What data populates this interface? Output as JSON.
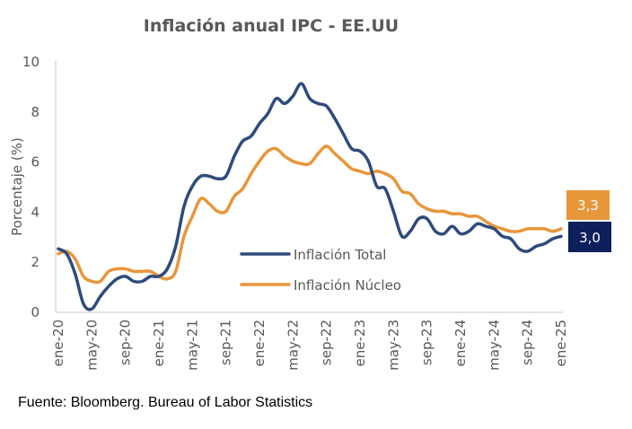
{
  "chart_data": {
    "type": "line",
    "title": "Inflación anual IPC - EE.UU",
    "xlabel": "",
    "ylabel": "Porcentaje (%)",
    "ylim": [
      0,
      10
    ],
    "yticks": [
      "0",
      "2",
      "4",
      "6",
      "8",
      "10"
    ],
    "grid": false,
    "legend_position": "center",
    "xtick_labels": [
      "ene-20",
      "may-20",
      "sep-20",
      "ene-21",
      "may-21",
      "sep-21",
      "ene-22",
      "may-22",
      "sep-22",
      "ene-23",
      "may-23",
      "sep-23",
      "ene-24",
      "may-24",
      "sep-24",
      "ene-25"
    ],
    "x_months": 61,
    "series": [
      {
        "name": "Inflación Total",
        "color": "#2F4B7C",
        "values": [
          2.5,
          2.3,
          1.5,
          0.3,
          0.1,
          0.6,
          1.0,
          1.3,
          1.4,
          1.2,
          1.2,
          1.4,
          1.4,
          1.7,
          2.6,
          4.2,
          5.0,
          5.4,
          5.4,
          5.3,
          5.4,
          6.2,
          6.8,
          7.0,
          7.5,
          7.9,
          8.5,
          8.3,
          8.6,
          9.1,
          8.5,
          8.3,
          8.2,
          7.7,
          7.1,
          6.5,
          6.4,
          6.0,
          5.0,
          4.9,
          4.0,
          3.0,
          3.2,
          3.7,
          3.7,
          3.2,
          3.1,
          3.4,
          3.1,
          3.2,
          3.5,
          3.4,
          3.3,
          3.0,
          2.9,
          2.5,
          2.4,
          2.6,
          2.7,
          2.9,
          3.0
        ]
      },
      {
        "name": "Inflación Núcleo",
        "color": "#E8963A",
        "values": [
          2.3,
          2.4,
          2.1,
          1.4,
          1.2,
          1.2,
          1.6,
          1.7,
          1.7,
          1.6,
          1.6,
          1.6,
          1.4,
          1.3,
          1.6,
          3.0,
          3.8,
          4.5,
          4.3,
          4.0,
          4.0,
          4.6,
          4.9,
          5.5,
          6.0,
          6.4,
          6.5,
          6.2,
          6.0,
          5.9,
          5.9,
          6.3,
          6.6,
          6.3,
          6.0,
          5.7,
          5.6,
          5.5,
          5.6,
          5.5,
          5.3,
          4.8,
          4.7,
          4.3,
          4.1,
          4.0,
          4.0,
          3.9,
          3.9,
          3.8,
          3.8,
          3.6,
          3.4,
          3.3,
          3.2,
          3.2,
          3.3,
          3.3,
          3.3,
          3.2,
          3.3
        ]
      }
    ],
    "callouts": [
      {
        "series": "Inflación Núcleo",
        "label": "3,3",
        "color": "#E8963A"
      },
      {
        "series": "Inflación Total",
        "label": "3,0",
        "color": "#0D1F5C"
      }
    ]
  },
  "source": "Fuente: Bloomberg. Bureau of Labor Statistics"
}
